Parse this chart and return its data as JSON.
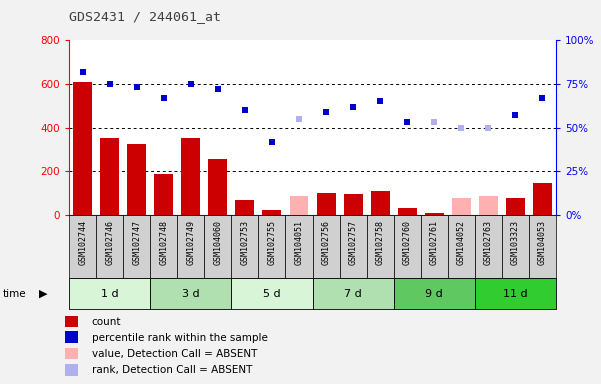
{
  "title": "GDS2431 / 244061_at",
  "samples": [
    "GSM102744",
    "GSM102746",
    "GSM102747",
    "GSM102748",
    "GSM102749",
    "GSM104060",
    "GSM102753",
    "GSM102755",
    "GSM104051",
    "GSM102756",
    "GSM102757",
    "GSM102758",
    "GSM102760",
    "GSM102761",
    "GSM104052",
    "GSM102763",
    "GSM103323",
    "GSM104053"
  ],
  "groups": [
    {
      "label": "1 d",
      "indices": [
        0,
        1,
        2
      ],
      "color": "#d8f5d8"
    },
    {
      "label": "3 d",
      "indices": [
        3,
        4,
        5
      ],
      "color": "#b0e0b0"
    },
    {
      "label": "5 d",
      "indices": [
        6,
        7,
        8
      ],
      "color": "#d8f5d8"
    },
    {
      "label": "7 d",
      "indices": [
        9,
        10,
        11
      ],
      "color": "#b0e0b0"
    },
    {
      "label": "9 d",
      "indices": [
        12,
        13,
        14
      ],
      "color": "#60c860"
    },
    {
      "label": "11 d",
      "indices": [
        15,
        16,
        17
      ],
      "color": "#30cc30"
    }
  ],
  "count_values": [
    610,
    355,
    325,
    190,
    355,
    258,
    68,
    22,
    null,
    100,
    95,
    108,
    32,
    10,
    null,
    null,
    80,
    148
  ],
  "absent_value_bars": [
    null,
    null,
    null,
    null,
    null,
    null,
    null,
    null,
    85,
    null,
    null,
    null,
    null,
    null,
    80,
    85,
    null,
    null
  ],
  "percentile_rank": [
    82,
    75,
    73,
    67,
    75,
    72,
    60,
    42,
    null,
    59,
    62,
    65,
    53,
    null,
    null,
    null,
    57,
    67
  ],
  "absent_rank": [
    null,
    null,
    null,
    null,
    null,
    null,
    null,
    null,
    55,
    null,
    null,
    null,
    null,
    53,
    50,
    50,
    null,
    null
  ],
  "left_ylim": [
    0,
    800
  ],
  "right_ylim": [
    0,
    100
  ],
  "left_yticks": [
    0,
    200,
    400,
    600,
    800
  ],
  "right_yticks": [
    0,
    25,
    50,
    75,
    100
  ],
  "right_yticklabels": [
    "0%",
    "25%",
    "50%",
    "75%",
    "100%"
  ],
  "bar_color": "#cc0000",
  "absent_bar_color": "#ffb0b0",
  "dot_color": "#0000cc",
  "absent_dot_color": "#b0b0ee",
  "sample_bg_color": "#d0d0d0",
  "plot_bg": "#ffffff",
  "legend_items": [
    {
      "color": "#cc0000",
      "label": "count"
    },
    {
      "color": "#0000cc",
      "label": "percentile rank within the sample"
    },
    {
      "color": "#ffb0b0",
      "label": "value, Detection Call = ABSENT"
    },
    {
      "color": "#b0b0ee",
      "label": "rank, Detection Call = ABSENT"
    }
  ]
}
